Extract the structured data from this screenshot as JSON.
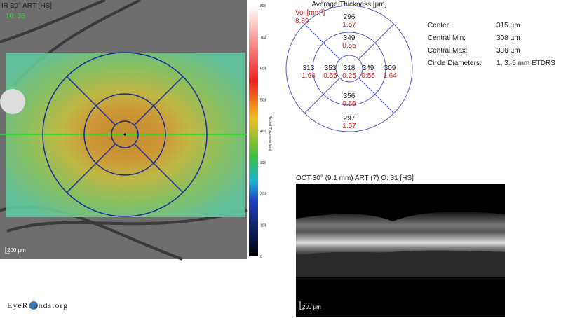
{
  "fundus": {
    "title": "IR 30° ART [HS]",
    "time": "10: 36",
    "scale": "200 µm",
    "colorbar": {
      "label": "Retinal Thickness [µm]",
      "ticks": [
        "800",
        "700",
        "600",
        "500",
        "400",
        "300",
        "200",
        "100",
        "0"
      ]
    }
  },
  "etdrs": {
    "title": "Average Thickness [µm]",
    "vol_label": "Vol [mm³]",
    "vol": "8.89",
    "sectors": [
      {
        "thickness": "296",
        "volume": "1.57"
      },
      {
        "thickness": "349",
        "volume": "0.55"
      },
      {
        "thickness": "313",
        "volume": "1.66"
      },
      {
        "thickness": "353",
        "volume": "0.55"
      },
      {
        "thickness": "318",
        "volume": "0.25"
      },
      {
        "thickness": "349",
        "volume": "0.55"
      },
      {
        "thickness": "309",
        "volume": "1.64"
      },
      {
        "thickness": "356",
        "volume": "0.56"
      },
      {
        "thickness": "297",
        "volume": "1.57"
      }
    ]
  },
  "stats": [
    {
      "label": "Center:",
      "value": "315 µm"
    },
    {
      "label": "Central Min:",
      "value": "308 µm"
    },
    {
      "label": "Central Max:",
      "value": "336 µm"
    },
    {
      "label": "Circle Diameters:",
      "value": "1, 3, 6 mm ETDRS"
    }
  ],
  "oct": {
    "title": "OCT 30° (9.1 mm) ART (7) Q: 31 [HS]",
    "scale": "200 µm"
  },
  "logo": "EyeRounds.org"
}
